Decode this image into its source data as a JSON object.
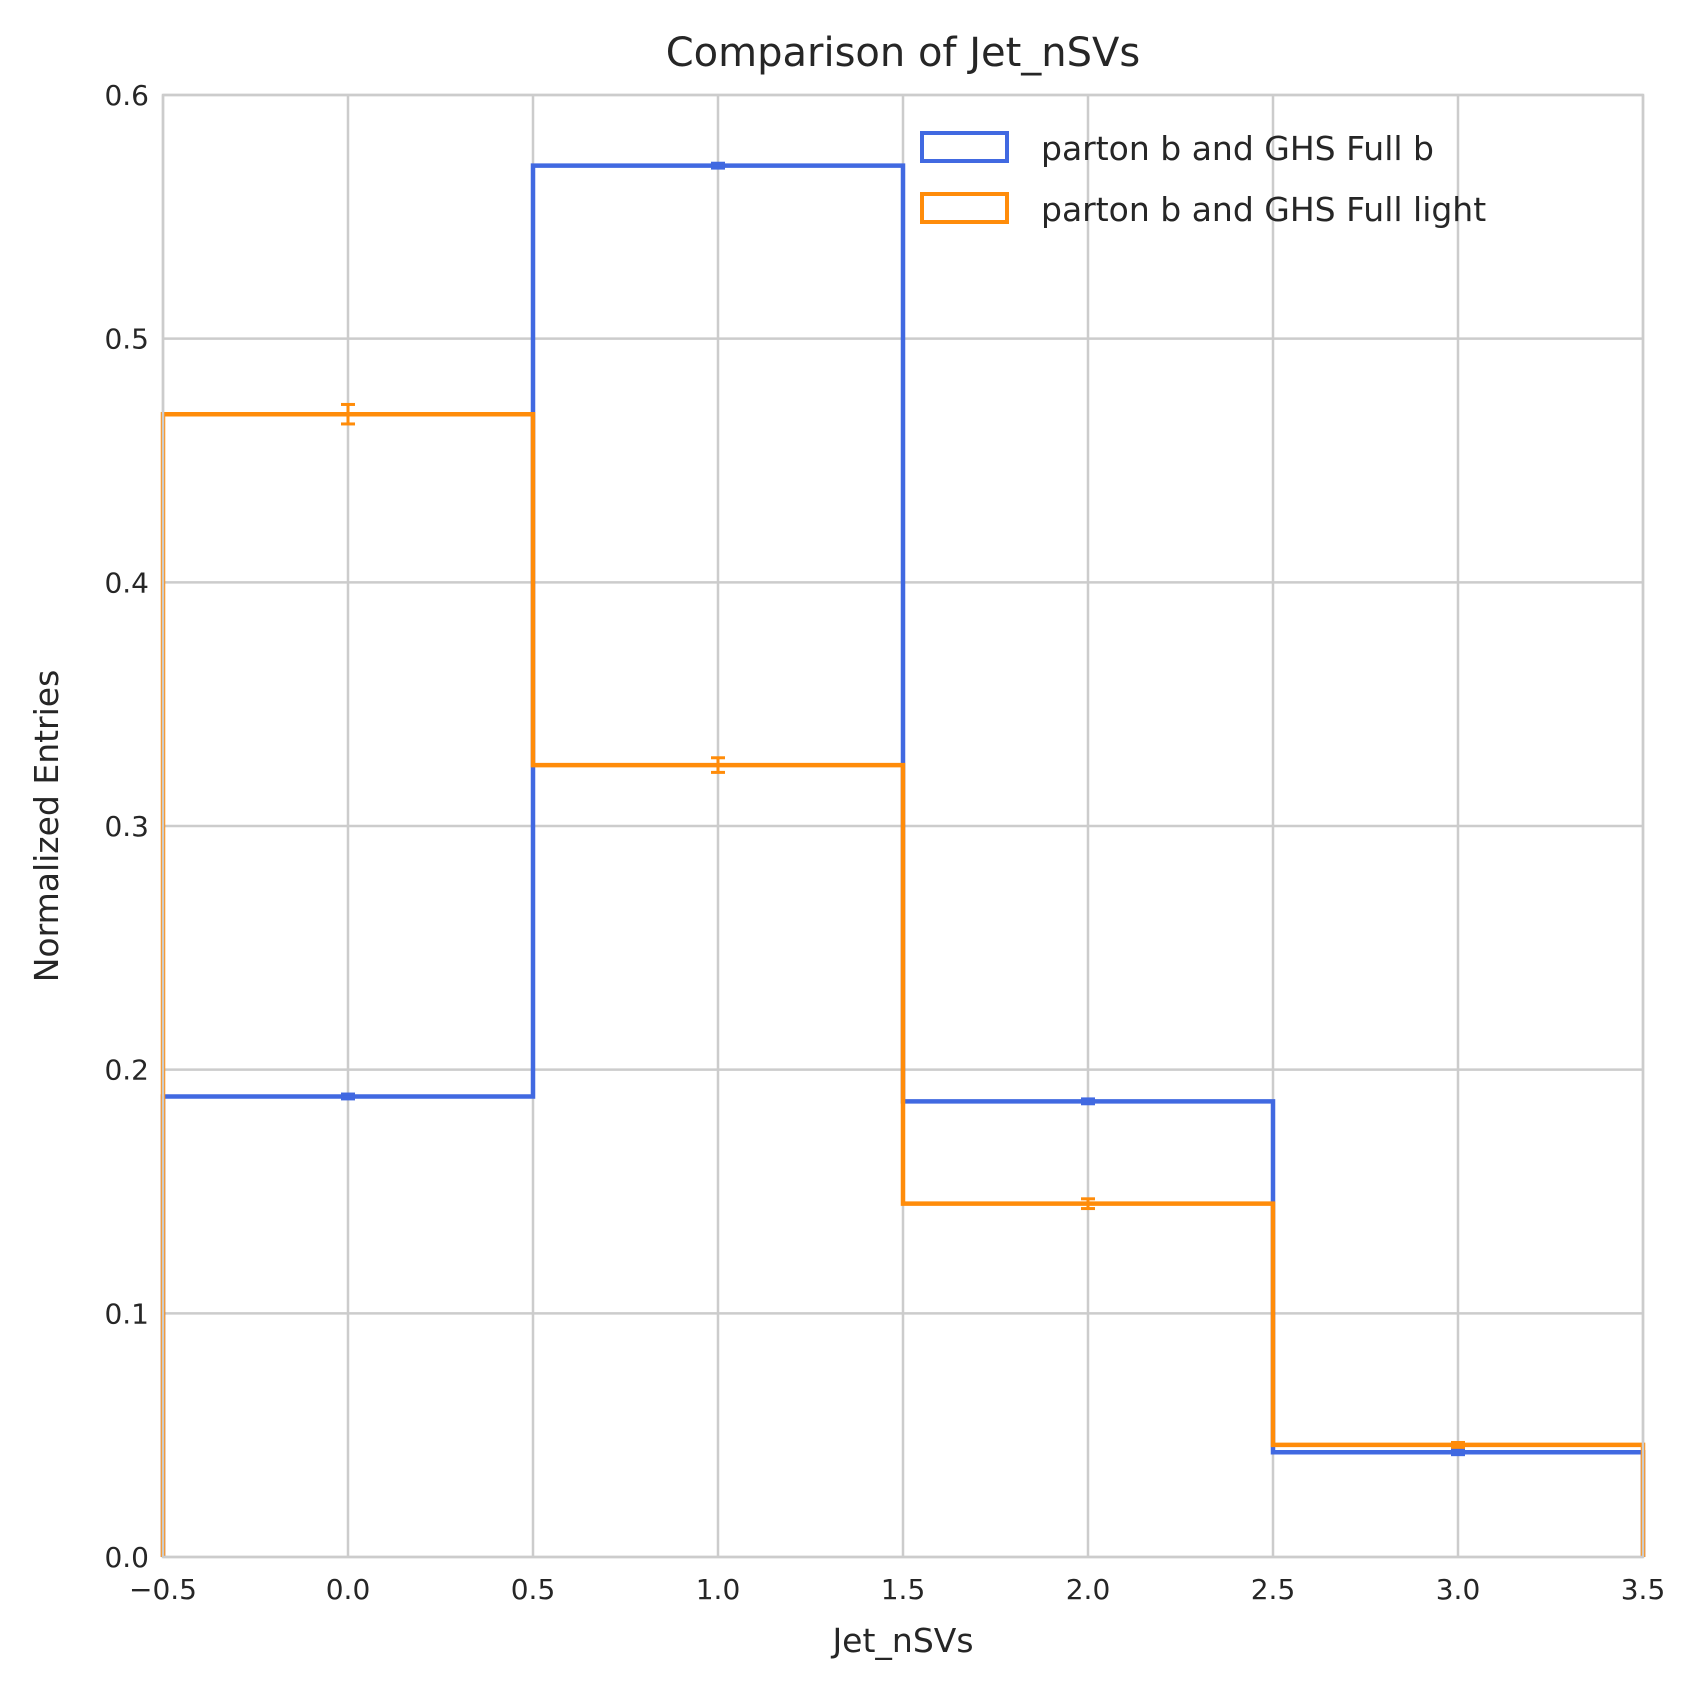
{
  "chart_data": {
    "type": "histogram-step",
    "title": "Comparison of Jet_nSVs",
    "xlabel": "Jet_nSVs",
    "ylabel": "Normalized Entries",
    "xlim": [
      -0.5,
      3.5
    ],
    "ylim": [
      0.0,
      0.6
    ],
    "xticks": [
      -0.5,
      0.0,
      0.5,
      1.0,
      1.5,
      2.0,
      2.5,
      3.0,
      3.5
    ],
    "xtick_labels": [
      "−0.5",
      "0.0",
      "0.5",
      "1.0",
      "1.5",
      "2.0",
      "2.5",
      "3.0",
      "3.5"
    ],
    "yticks": [
      0.0,
      0.1,
      0.2,
      0.3,
      0.4,
      0.5,
      0.6
    ],
    "ytick_labels": [
      "0.0",
      "0.1",
      "0.2",
      "0.3",
      "0.4",
      "0.5",
      "0.6"
    ],
    "grid": true,
    "legend_position": "top-right",
    "bin_edges": [
      -0.5,
      0.5,
      1.5,
      2.5,
      3.5
    ],
    "bin_centers": [
      0.0,
      1.0,
      2.0,
      3.0
    ],
    "series": [
      {
        "name": "parton b and GHS Full b",
        "color": "#4169E1",
        "values": [
          0.189,
          0.571,
          0.187,
          0.043
        ],
        "errors": [
          0.001,
          0.001,
          0.001,
          0.001
        ]
      },
      {
        "name": "parton b and GHS Full light",
        "color": "#FF8C0A",
        "values": [
          0.469,
          0.325,
          0.145,
          0.046
        ],
        "errors": [
          0.004,
          0.003,
          0.002,
          0.001
        ]
      }
    ]
  }
}
